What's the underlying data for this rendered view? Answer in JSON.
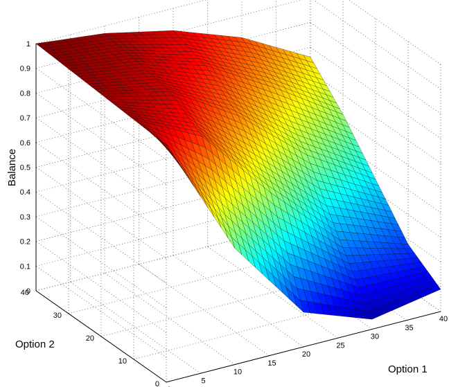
{
  "chart_data": {
    "type": "surface",
    "title": "",
    "xlabel": "Option 1",
    "ylabel": "Option 2",
    "zlabel": "Balance",
    "xlim": [
      0,
      40
    ],
    "ylim": [
      0,
      40
    ],
    "zlim": [
      0,
      1
    ],
    "x_ticks": [
      "0",
      "5",
      "10",
      "15",
      "20",
      "25",
      "30",
      "35",
      "40"
    ],
    "y_ticks": [
      "0",
      "10",
      "20",
      "30",
      "40"
    ],
    "z_ticks": [
      "0",
      "0.1",
      "0.2",
      "0.3",
      "0.4",
      "0.5",
      "0.6",
      "0.7",
      "0.8",
      "0.9",
      "1"
    ],
    "grid": true,
    "colormap": "jet",
    "surface_samples": {
      "x": [
        0,
        10,
        20,
        30,
        40
      ],
      "y": [
        0,
        10,
        20,
        30,
        40
      ],
      "z": [
        [
          0.96,
          0.47,
          0.14,
          0.04,
          0.09
        ],
        [
          0.97,
          0.83,
          0.53,
          0.27,
          0.18
        ],
        [
          0.98,
          0.92,
          0.75,
          0.52,
          0.35
        ],
        [
          0.99,
          0.95,
          0.86,
          0.7,
          0.52
        ],
        [
          1.0,
          0.97,
          0.91,
          0.81,
          0.66
        ]
      ]
    }
  }
}
